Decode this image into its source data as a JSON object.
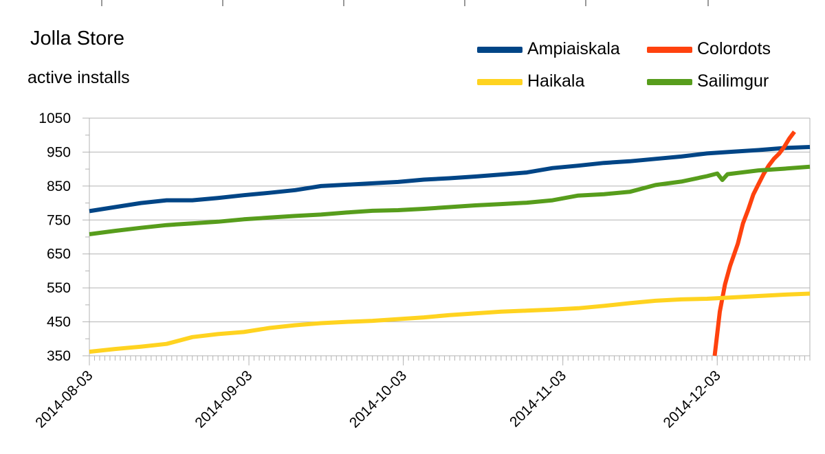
{
  "chart_data": {
    "type": "line",
    "title": "Jolla Store",
    "subtitle": "active installs",
    "xlabel": "",
    "ylabel": "",
    "x_start": "2014-08-03",
    "x_end": "2014-12-20",
    "x_tick_labels": [
      "2014-08-03",
      "2014-09-03",
      "2014-10-03",
      "2014-11-03",
      "2014-12-03"
    ],
    "x_tick_days": [
      0,
      31,
      61,
      92,
      122
    ],
    "ylim": [
      350,
      1050
    ],
    "y_ticks": [
      350,
      450,
      550,
      650,
      750,
      850,
      950,
      1050
    ],
    "grid": true,
    "legend_position": "top-right",
    "series": [
      {
        "name": "Ampiaiskala",
        "color": "#004586",
        "points": [
          [
            0,
            776
          ],
          [
            5,
            788
          ],
          [
            10,
            800
          ],
          [
            15,
            808
          ],
          [
            20,
            808
          ],
          [
            25,
            815
          ],
          [
            30,
            823
          ],
          [
            35,
            830
          ],
          [
            40,
            838
          ],
          [
            45,
            850
          ],
          [
            50,
            854
          ],
          [
            55,
            858
          ],
          [
            60,
            862
          ],
          [
            65,
            869
          ],
          [
            70,
            873
          ],
          [
            75,
            878
          ],
          [
            80,
            884
          ],
          [
            85,
            890
          ],
          [
            90,
            903
          ],
          [
            95,
            910
          ],
          [
            100,
            918
          ],
          [
            105,
            923
          ],
          [
            110,
            930
          ],
          [
            115,
            937
          ],
          [
            120,
            946
          ],
          [
            125,
            951
          ],
          [
            130,
            956
          ],
          [
            135,
            962
          ],
          [
            140,
            965
          ]
        ]
      },
      {
        "name": "Colordots",
        "color": "#ff420e",
        "points": [
          [
            121.5,
            350
          ],
          [
            122.5,
            480
          ],
          [
            123.5,
            560
          ],
          [
            124.5,
            615
          ],
          [
            126,
            680
          ],
          [
            127,
            740
          ],
          [
            128,
            780
          ],
          [
            129,
            825
          ],
          [
            130,
            855
          ],
          [
            131,
            885
          ],
          [
            132,
            910
          ],
          [
            133,
            930
          ],
          [
            134,
            945
          ],
          [
            135,
            965
          ],
          [
            136,
            990
          ],
          [
            137,
            1010
          ]
        ]
      },
      {
        "name": "Haikala",
        "color": "#ffd320",
        "points": [
          [
            0,
            362
          ],
          [
            5,
            370
          ],
          [
            10,
            377
          ],
          [
            15,
            385
          ],
          [
            20,
            405
          ],
          [
            25,
            414
          ],
          [
            30,
            420
          ],
          [
            35,
            432
          ],
          [
            40,
            440
          ],
          [
            45,
            446
          ],
          [
            50,
            450
          ],
          [
            55,
            453
          ],
          [
            60,
            458
          ],
          [
            65,
            463
          ],
          [
            70,
            470
          ],
          [
            75,
            475
          ],
          [
            80,
            480
          ],
          [
            85,
            483
          ],
          [
            90,
            486
          ],
          [
            95,
            490
          ],
          [
            100,
            497
          ],
          [
            105,
            505
          ],
          [
            110,
            512
          ],
          [
            115,
            516
          ],
          [
            120,
            518
          ],
          [
            125,
            522
          ],
          [
            130,
            526
          ],
          [
            135,
            530
          ],
          [
            140,
            533
          ]
        ]
      },
      {
        "name": "Sailimgur",
        "color": "#579d1c",
        "points": [
          [
            0,
            708
          ],
          [
            5,
            718
          ],
          [
            10,
            727
          ],
          [
            15,
            735
          ],
          [
            20,
            740
          ],
          [
            25,
            745
          ],
          [
            30,
            752
          ],
          [
            35,
            757
          ],
          [
            40,
            762
          ],
          [
            45,
            766
          ],
          [
            50,
            772
          ],
          [
            55,
            777
          ],
          [
            60,
            779
          ],
          [
            65,
            783
          ],
          [
            70,
            788
          ],
          [
            75,
            793
          ],
          [
            80,
            797
          ],
          [
            85,
            801
          ],
          [
            90,
            808
          ],
          [
            95,
            822
          ],
          [
            100,
            826
          ],
          [
            105,
            833
          ],
          [
            110,
            853
          ],
          [
            115,
            863
          ],
          [
            120,
            879
          ],
          [
            122,
            887
          ],
          [
            123,
            868
          ],
          [
            124,
            885
          ],
          [
            130,
            896
          ],
          [
            135,
            901
          ],
          [
            140,
            907
          ]
        ]
      }
    ]
  }
}
